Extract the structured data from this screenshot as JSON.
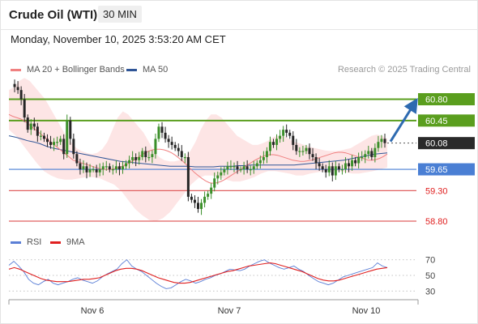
{
  "header": {
    "instrument": "Crude Oil (WTI)",
    "timeframe": "30 MIN"
  },
  "datetime": "Monday, November 10, 2025 3:53:20 AM CET",
  "credit": "Research © 2025 Trading Central",
  "legend_main": [
    {
      "label": "MA 20 + Bollinger Bands",
      "color": "#f08080"
    },
    {
      "label": "MA 50",
      "color": "#2f5597"
    }
  ],
  "legend_rsi": [
    {
      "label": "RSI",
      "color": "#5b7fd6"
    },
    {
      "label": "9MA",
      "color": "#e02020"
    }
  ],
  "colors": {
    "resistance": "#5a9e1e",
    "support_blue": "#4a7fd4",
    "support_red": "#e06060",
    "last_price": "#2a2a2a",
    "arrow": "#2e6ab0",
    "candle_up": "#3b8f2a",
    "candle_down": "#262626",
    "band_fill": "#fde0e0"
  },
  "chart_data": [
    {
      "type": "candlestick",
      "y_range": [
        58.55,
        61.35
      ],
      "x_ticks": [
        "Nov 6",
        "Nov 7",
        "Nov 10"
      ],
      "levels": [
        {
          "value": 60.8,
          "label": "60.80",
          "style": "resistance"
        },
        {
          "value": 60.45,
          "label": "60.45",
          "style": "resistance"
        },
        {
          "value": 60.08,
          "label": "60.08",
          "style": "last_price"
        },
        {
          "value": 59.65,
          "label": "59.65",
          "style": "support_blue"
        },
        {
          "value": 59.3,
          "label": "59.30",
          "style": "support_red"
        },
        {
          "value": 58.8,
          "label": "58.80",
          "style": "support_red"
        }
      ],
      "last_price": 60.08,
      "projection": {
        "from": 60.08,
        "to": 60.8
      },
      "close_path": [
        61.05,
        61.0,
        60.95,
        60.8,
        60.5,
        60.3,
        60.4,
        60.35,
        60.2,
        60.2,
        60.15,
        60.1,
        60.05,
        60.1,
        60.1,
        60.15,
        59.9,
        60.45,
        60.15,
        59.9,
        59.75,
        59.65,
        59.7,
        59.6,
        59.65,
        59.65,
        59.6,
        59.65,
        59.7,
        59.7,
        59.65,
        59.65,
        59.7,
        59.65,
        59.7,
        59.75,
        59.8,
        59.85,
        59.8,
        59.85,
        59.95,
        59.85,
        59.85,
        59.9,
        60.15,
        60.35,
        60.25,
        60.15,
        60.1,
        60.05,
        60.0,
        59.95,
        59.85,
        59.85,
        59.2,
        59.15,
        59.1,
        59.0,
        59.1,
        59.2,
        59.25,
        59.35,
        59.5,
        59.55,
        59.6,
        59.65,
        59.7,
        59.7,
        59.7,
        59.65,
        59.65,
        59.7,
        59.65,
        59.65,
        59.7,
        59.75,
        59.8,
        59.85,
        59.95,
        60.1,
        60.05,
        60.15,
        60.2,
        60.3,
        60.25,
        60.2,
        60.05,
        59.95,
        59.95,
        59.95,
        60.0,
        59.9,
        59.85,
        59.75,
        59.7,
        59.65,
        59.6,
        59.7,
        59.55,
        59.7,
        59.65,
        59.65,
        59.75,
        59.7,
        59.8,
        59.75,
        59.85,
        59.85,
        59.9,
        59.95,
        59.85,
        60.0,
        60.1,
        60.15,
        60.08
      ],
      "ma20_path": [
        60.55,
        60.52,
        60.5,
        60.48,
        60.45,
        60.4,
        60.35,
        60.3,
        60.25,
        60.2,
        60.15,
        60.1,
        60.05,
        60.0,
        59.95,
        59.9,
        59.85,
        59.8,
        59.78,
        59.76,
        59.74,
        59.72,
        59.7,
        59.68,
        59.66,
        59.65,
        59.65,
        59.65,
        59.66,
        59.68,
        59.7,
        59.73,
        59.76,
        59.8,
        59.84,
        59.88,
        59.92,
        59.95,
        59.97,
        59.98,
        59.98,
        59.97,
        59.95,
        59.92,
        59.88,
        59.83,
        59.78,
        59.72,
        59.66,
        59.6,
        59.55,
        59.5,
        59.46,
        59.43,
        59.42,
        59.43,
        59.45,
        59.48,
        59.52,
        59.56,
        59.6,
        59.64,
        59.68,
        59.72,
        59.76,
        59.8,
        59.83,
        59.86,
        59.88,
        59.89,
        59.89,
        59.88,
        59.86,
        59.84,
        59.82,
        59.8,
        59.79,
        59.78,
        59.78,
        59.79,
        59.8,
        59.82,
        59.84,
        59.86,
        59.88,
        59.9,
        59.92,
        59.93,
        59.93,
        59.92,
        59.9,
        59.88,
        59.86,
        59.84,
        59.82,
        59.8,
        59.8,
        59.81,
        59.83,
        59.86,
        59.9
      ],
      "ma50_path": [
        60.2,
        60.18,
        60.15,
        60.12,
        60.1,
        60.07,
        60.03,
        60.0,
        59.98,
        59.96,
        59.94,
        59.92,
        59.9,
        59.88,
        59.86,
        59.84,
        59.82,
        59.8,
        59.78,
        59.77,
        59.76,
        59.75,
        59.74,
        59.73,
        59.72,
        59.71,
        59.7,
        59.7,
        59.7,
        59.7,
        59.69,
        59.69,
        59.69,
        59.69,
        59.7,
        59.7,
        59.7,
        59.71,
        59.71,
        59.72,
        59.72,
        59.72,
        59.72,
        59.72,
        59.72,
        59.72,
        59.72,
        59.73,
        59.74,
        59.75,
        59.76,
        59.77,
        59.78,
        59.79,
        59.8,
        59.82,
        59.84,
        59.86,
        59.88,
        59.9,
        59.91,
        59.92
      ],
      "bollinger_upper_path": [
        60.95,
        61.0,
        61.1,
        61.15,
        61.1,
        61.0,
        60.9,
        60.8,
        60.65,
        60.5,
        60.35,
        60.2,
        60.1,
        60.0,
        59.95,
        59.92,
        59.9,
        59.92,
        59.98,
        60.1,
        60.3,
        60.5,
        60.6,
        60.55,
        60.45,
        60.35,
        60.25,
        60.1,
        59.95,
        59.85,
        59.8,
        59.78,
        59.78,
        59.8,
        59.85,
        59.95,
        60.1,
        60.3,
        60.45,
        60.55,
        60.55,
        60.5,
        60.4,
        60.3,
        60.2,
        60.15,
        60.1,
        60.05,
        60.05,
        60.08,
        60.12,
        60.18,
        60.2,
        60.2,
        60.15,
        60.1,
        60.08,
        60.05,
        60.02,
        60.0,
        59.98,
        59.96,
        59.95,
        59.95,
        59.96,
        59.98,
        60.0,
        60.05,
        60.1,
        60.15,
        60.2,
        60.22,
        60.2,
        60.15
      ],
      "bollinger_lower_path": [
        60.3,
        60.2,
        60.05,
        59.9,
        59.75,
        59.62,
        59.55,
        59.5,
        59.48,
        59.48,
        59.5,
        59.52,
        59.52,
        59.5,
        59.45,
        59.4,
        59.3,
        59.15,
        59.0,
        58.9,
        58.82,
        58.8,
        58.85,
        58.95,
        59.1,
        59.25,
        59.4,
        59.5,
        59.55,
        59.55,
        59.52,
        59.48,
        59.45,
        59.45,
        59.48,
        59.52,
        59.58,
        59.62,
        59.62,
        59.6,
        59.58,
        59.55,
        59.55,
        59.58,
        59.6,
        59.62,
        59.63,
        59.62,
        59.6,
        59.58,
        59.58,
        59.6,
        59.62,
        59.65,
        59.68
      ]
    },
    {
      "type": "line",
      "name": "RSI panel",
      "y_ticks": [
        70,
        50,
        30
      ],
      "y_range": [
        22,
        78
      ],
      "series": [
        {
          "name": "RSI",
          "values": [
            63,
            68,
            62,
            55,
            45,
            40,
            38,
            42,
            45,
            40,
            38,
            40,
            42,
            45,
            47,
            44,
            42,
            40,
            43,
            48,
            52,
            55,
            58,
            65,
            70,
            62,
            58,
            55,
            50,
            45,
            40,
            36,
            33,
            34,
            38,
            42,
            45,
            43,
            40,
            42,
            45,
            47,
            50,
            52,
            55,
            58,
            57,
            56,
            58,
            62,
            65,
            68,
            70,
            66,
            63,
            60,
            58,
            60,
            62,
            58,
            55,
            50,
            46,
            42,
            40,
            38,
            40,
            44,
            48,
            50,
            52,
            54,
            56,
            58,
            60,
            66,
            62,
            60
          ]
        },
        {
          "name": "9MA",
          "values": [
            58,
            60,
            58,
            55,
            52,
            49,
            46,
            44,
            43,
            42,
            42,
            42,
            43,
            44,
            45,
            45,
            46,
            47,
            50,
            53,
            56,
            58,
            59,
            59,
            58,
            56,
            53,
            50,
            47,
            45,
            43,
            41,
            40,
            40,
            41,
            43,
            45,
            47,
            49,
            51,
            53,
            55,
            56,
            58,
            60,
            62,
            63,
            64,
            65,
            66,
            65,
            63,
            61,
            59,
            57,
            55,
            52,
            49,
            46,
            44,
            43,
            43,
            44,
            46,
            48,
            50,
            52,
            54,
            56,
            58,
            59,
            60
          ]
        }
      ]
    }
  ]
}
